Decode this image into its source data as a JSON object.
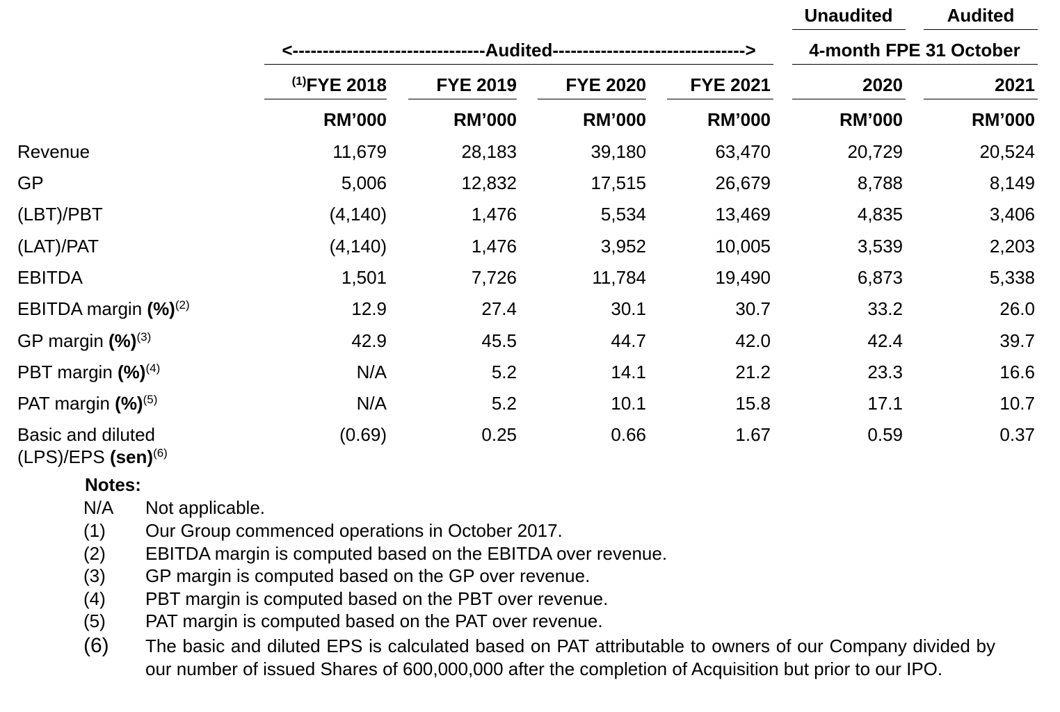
{
  "table": {
    "group_headers": {
      "unaudited": "Unaudited",
      "audited": "Audited",
      "audited_range": "<--------------------------------Audited-------------------------------->",
      "period": "4-month FPE 31 October"
    },
    "columns": [
      {
        "note": "(1)",
        "label": "FYE 2018",
        "unit": "RM’000"
      },
      {
        "label": "FYE 2019",
        "unit": "RM’000"
      },
      {
        "label": "FYE 2020",
        "unit": "RM’000"
      },
      {
        "label": "FYE 2021",
        "unit": "RM’000"
      },
      {
        "label": "2020",
        "unit": "RM’000"
      },
      {
        "label": "2021",
        "unit": "RM’000"
      }
    ],
    "rows": [
      {
        "label": "Revenue",
        "values": [
          "11,679",
          "28,183",
          "39,180",
          "63,470",
          "20,729",
          "20,524"
        ]
      },
      {
        "label": "GP",
        "values": [
          "5,006",
          "12,832",
          "17,515",
          "26,679",
          "8,788",
          "8,149"
        ]
      },
      {
        "label": "(LBT)/PBT",
        "values": [
          "(4,140)",
          "1,476",
          "5,534",
          "13,469",
          "4,835",
          "3,406"
        ]
      },
      {
        "label": "(LAT)/PAT",
        "values": [
          "(4,140)",
          "1,476",
          "3,952",
          "10,005",
          "3,539",
          "2,203"
        ]
      },
      {
        "label": "EBITDA",
        "values": [
          "1,501",
          "7,726",
          "11,784",
          "19,490",
          "6,873",
          "5,338"
        ]
      },
      {
        "label": "EBITDA margin ",
        "unit": "(%)",
        "note": "(2)",
        "values": [
          "12.9",
          "27.4",
          "30.1",
          "30.7",
          "33.2",
          "26.0"
        ]
      },
      {
        "label": "GP margin ",
        "unit": "(%)",
        "note": "(3)",
        "values": [
          "42.9",
          "45.5",
          "44.7",
          "42.0",
          "42.4",
          "39.7"
        ]
      },
      {
        "label": "PBT margin ",
        "unit": "(%)",
        "note": "(4)",
        "values": [
          "N/A",
          "5.2",
          "14.1",
          "21.2",
          "23.3",
          "16.6"
        ]
      },
      {
        "label": "PAT margin ",
        "unit": "(%)",
        "note": "(5)",
        "values": [
          "N/A",
          "5.2",
          "10.1",
          "15.8",
          "17.1",
          "10.7"
        ]
      },
      {
        "label": "Basic and diluted",
        "label2": "(LPS)/EPS ",
        "unit": "(sen)",
        "note": "(6)",
        "values": [
          "(0.69)",
          "0.25",
          "0.66",
          "1.67",
          "0.59",
          "0.37"
        ]
      }
    ]
  },
  "notes": {
    "title": "Notes:",
    "items": [
      {
        "marker": "N/A",
        "text": "Not applicable."
      },
      {
        "marker": "(1)",
        "text": "Our Group commenced operations in October 2017."
      },
      {
        "marker": "(2)",
        "text": "EBITDA margin is computed based on the EBITDA over revenue."
      },
      {
        "marker": "(3)",
        "text": "GP margin is computed based on the GP over revenue."
      },
      {
        "marker": "(4)",
        "text": "PBT margin is computed based on the PBT over revenue."
      },
      {
        "marker": "(5)",
        "text": "PAT margin is computed based on the PAT over revenue."
      },
      {
        "marker": "(6)",
        "text": "The basic and diluted EPS is calculated based on PAT attributable to owners of our Company divided by our number of issued Shares of 600,000,000 after the completion of Acquisition but prior to our IPO."
      }
    ]
  }
}
